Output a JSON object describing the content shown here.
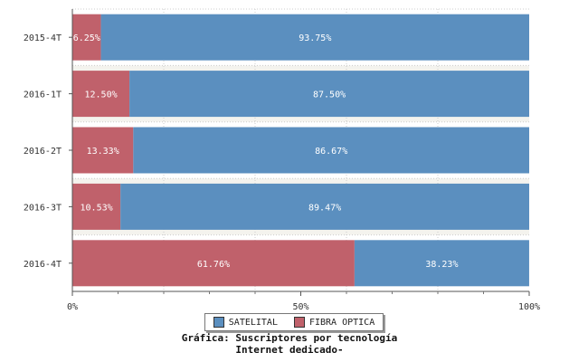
{
  "chart_data": {
    "type": "bar",
    "orientation": "horizontal",
    "stacked": true,
    "normalized": true,
    "categories": [
      "2015-4T",
      "2016-1T",
      "2016-2T",
      "2016-3T",
      "2016-4T"
    ],
    "series": [
      {
        "name": "FIBRA OPTICA",
        "color": "#c0616b",
        "values": [
          6.25,
          12.5,
          13.33,
          10.53,
          61.76
        ],
        "labels": [
          "6.25%",
          "12.50%",
          "13.33%",
          "10.53%",
          "61.76%"
        ]
      },
      {
        "name": "SATELITAL",
        "color": "#5b8fbf",
        "values": [
          93.75,
          87.5,
          86.67,
          89.47,
          38.23
        ],
        "labels": [
          "93.75%",
          "87.50%",
          "86.67%",
          "89.47%",
          "38.23%"
        ]
      }
    ],
    "xlim": [
      0,
      100
    ],
    "x_ticks": [
      "0%",
      "50%",
      "100%"
    ],
    "grid": true,
    "legend_placement": "bottom",
    "title_lines": [
      "Gráfica: Suscriptores por tecnología",
      "Internet dedicado-"
    ]
  },
  "legend": [
    {
      "name": "SATELITAL",
      "color": "#5b8fbf"
    },
    {
      "name": "FIBRA OPTICA",
      "color": "#c0616b"
    }
  ]
}
